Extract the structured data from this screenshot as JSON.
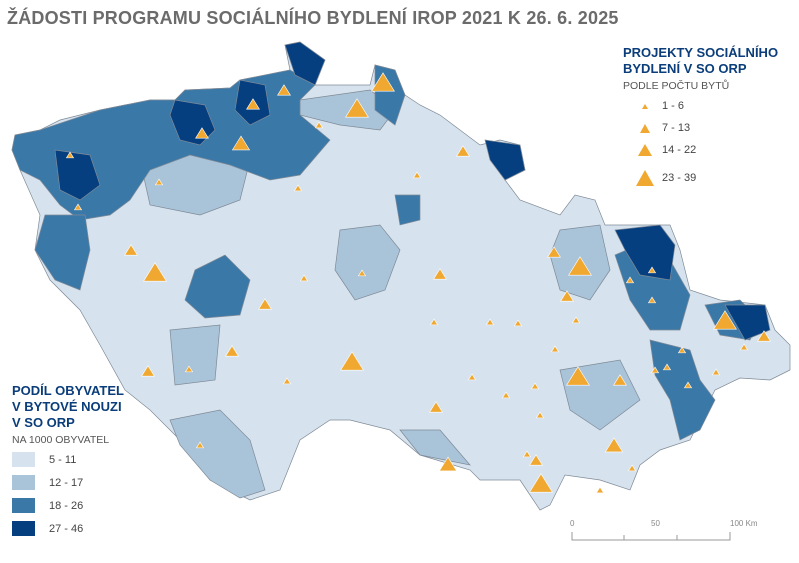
{
  "title": "ŽÁDOSTI PROGRAMU SOCIÁLNÍHO BYDLENÍ IROP 2021 K 26. 6. 2025",
  "projects_legend": {
    "title_line1": "PROJEKTY SOCIÁLNÍHO",
    "title_line2": "BYDLENÍ V SO ORP",
    "subtitle": "PODLE POČTU BYTŮ",
    "classes": [
      {
        "label": "1 - 6",
        "size": 1
      },
      {
        "label": "7 - 13",
        "size": 2
      },
      {
        "label": "14 - 22",
        "size": 3
      },
      {
        "label": "23 - 39",
        "size": 4
      }
    ],
    "color": "#f0a830"
  },
  "share_legend": {
    "title_line1": "PODÍL OBYVATEL",
    "title_line2": "V BYTOVÉ NOUZI",
    "title_line3": "V SO ORP",
    "subtitle": "NA 1000 OBYVATEL",
    "classes": [
      {
        "label": "5 - 11",
        "color": "#d6e3ee"
      },
      {
        "label": "12 - 17",
        "color": "#a9c3d9"
      },
      {
        "label": "18 - 26",
        "color": "#3a78a8"
      },
      {
        "label": "27 - 46",
        "color": "#063f80"
      }
    ]
  },
  "scale_bar": {
    "labels": [
      "0",
      "50",
      "100 Km"
    ]
  }
}
